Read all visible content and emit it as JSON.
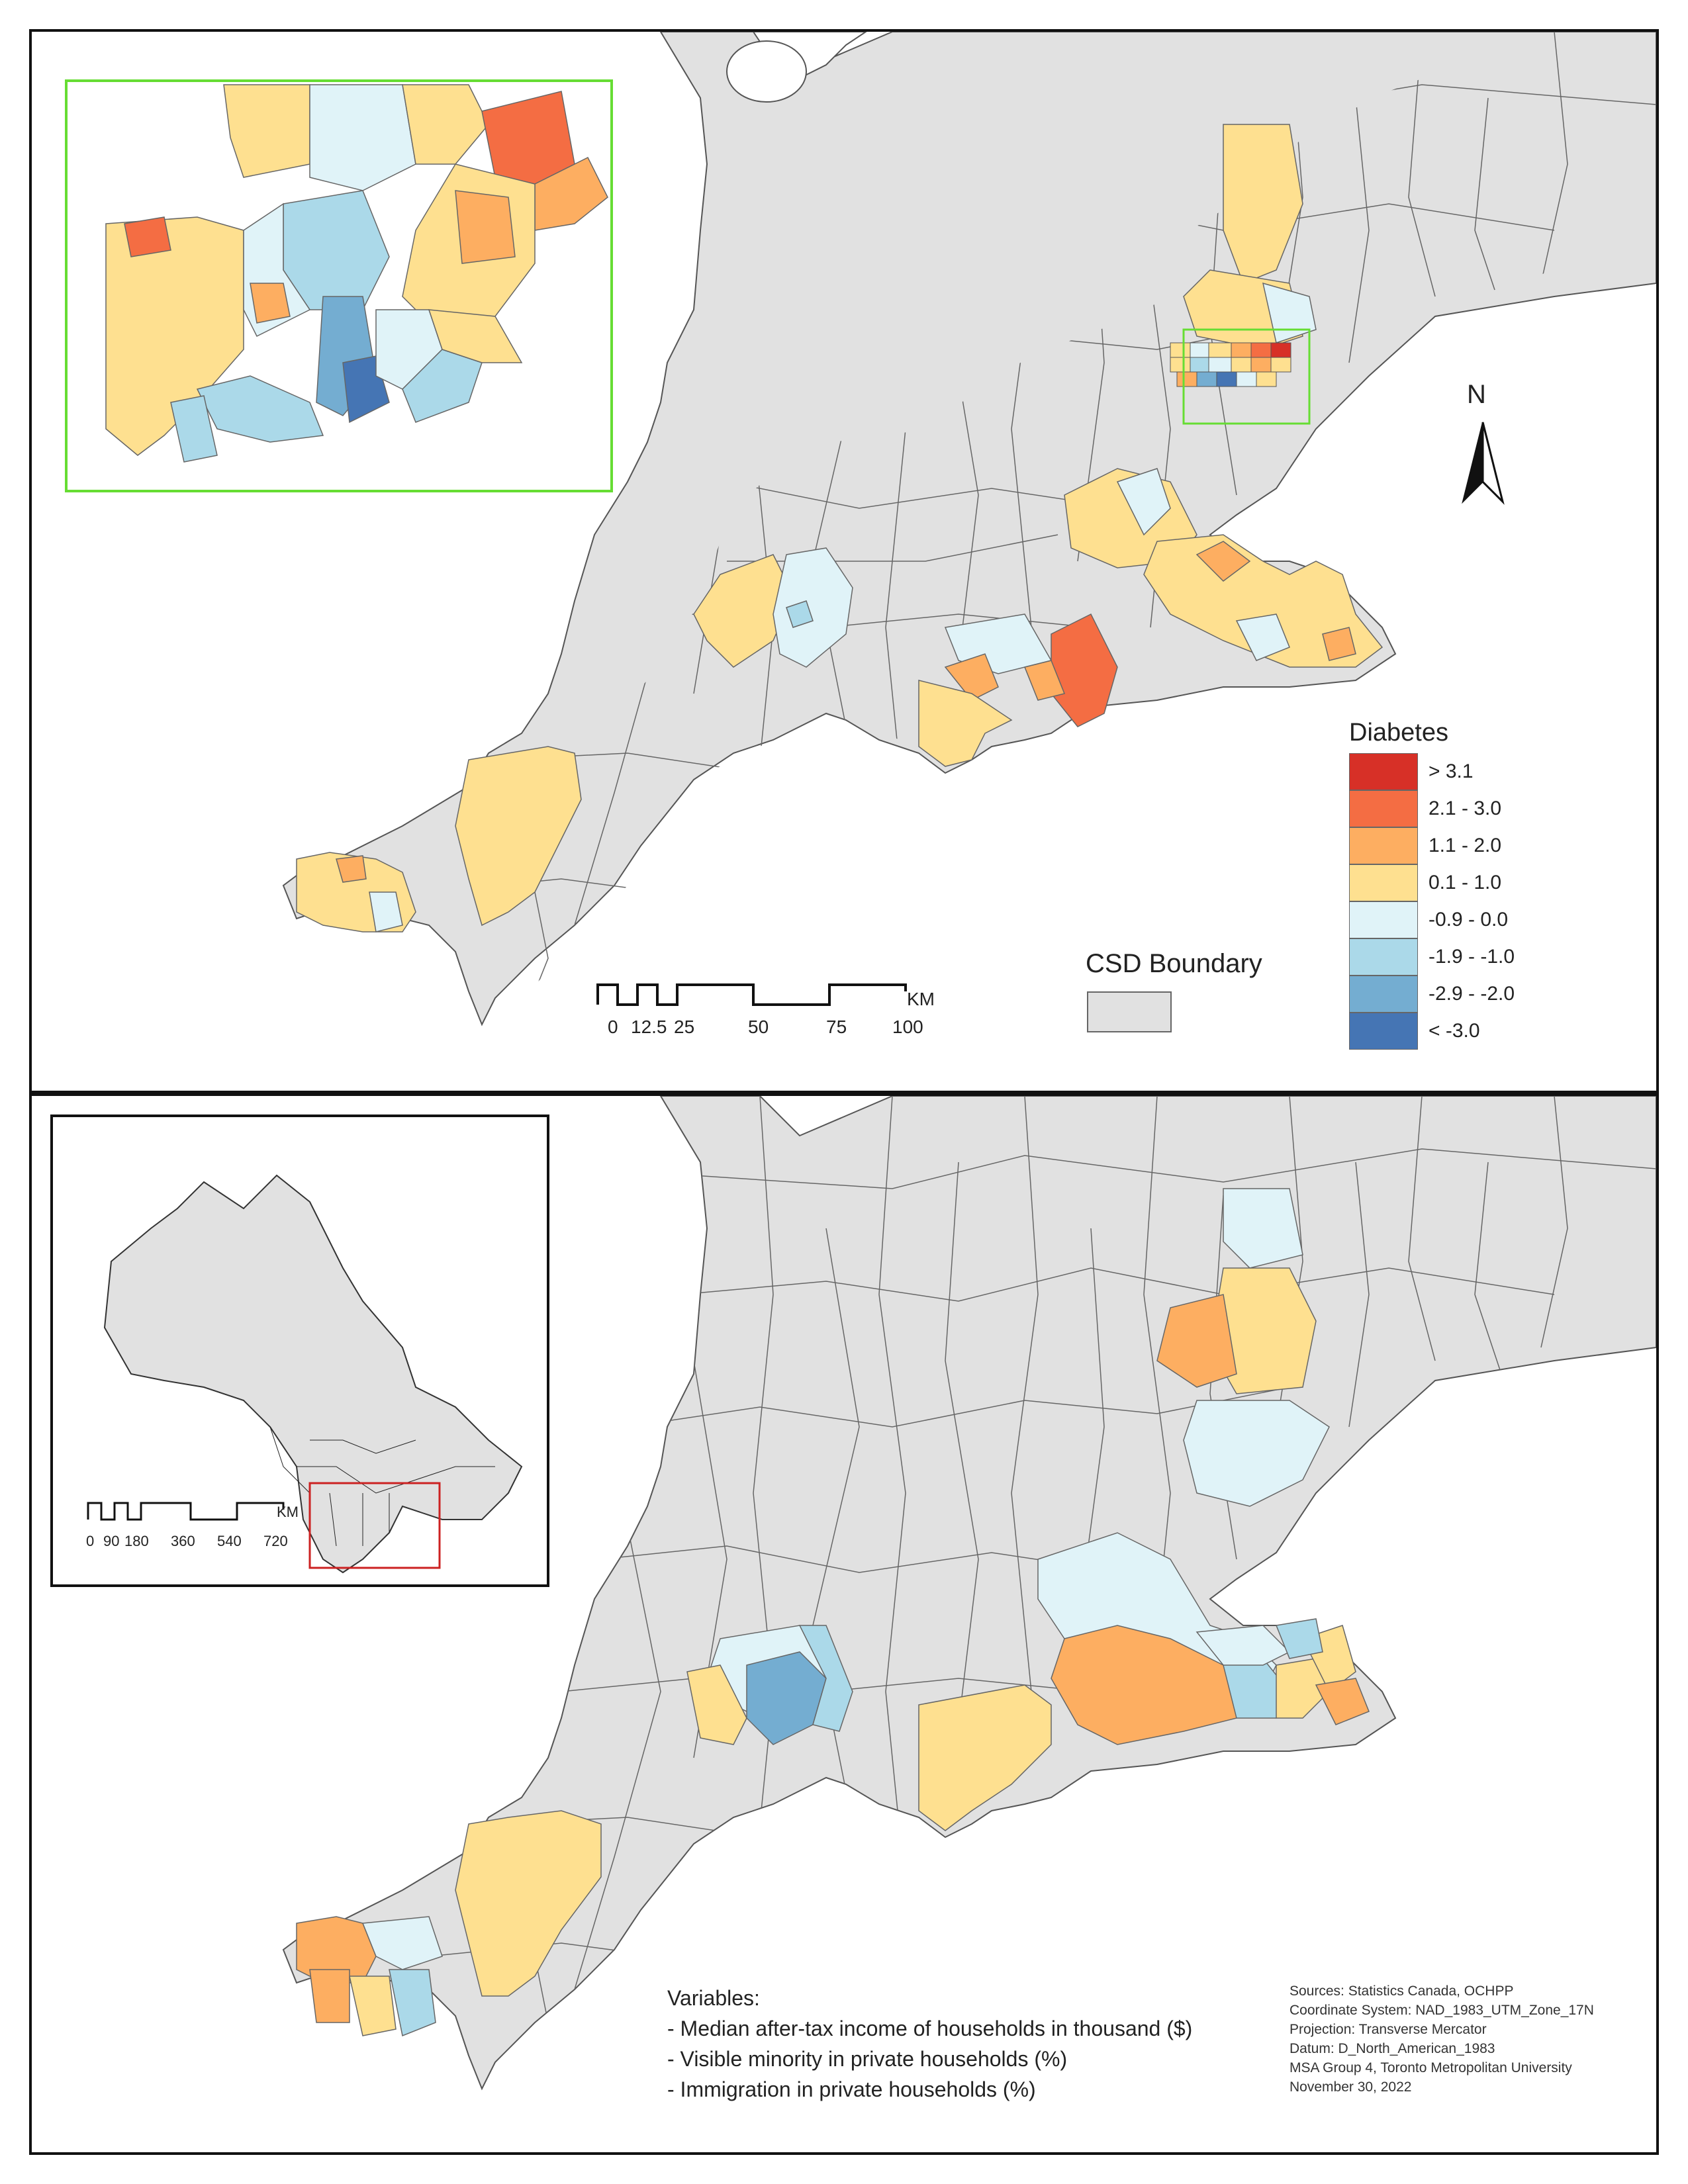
{
  "legend": {
    "title": "Diabetes",
    "classes": [
      {
        "label": "> 3.1",
        "color": "#d73027"
      },
      {
        "label": "2.1 - 3.0",
        "color": "#f46d43"
      },
      {
        "label": "1.1 - 2.0",
        "color": "#fdae61"
      },
      {
        "label": "0.1 - 1.0",
        "color": "#fee090"
      },
      {
        "label": "-0.9 - 0.0",
        "color": "#e0f3f8"
      },
      {
        "label": "-1.9 - -1.0",
        "color": "#abd9e9"
      },
      {
        "label": "-2.9 - -2.0",
        "color": "#74add1"
      },
      {
        "label": "< -3.0",
        "color": "#4575b4"
      }
    ]
  },
  "csd_boundary": {
    "label": "CSD Boundary",
    "color": "#e1e1e1"
  },
  "north_arrow": {
    "label": "N",
    "icon": "north-arrow-icon"
  },
  "scale_bar_main": {
    "ticks": [
      "0",
      "12.5",
      "25",
      "50",
      "75",
      "100"
    ],
    "unit": "KM"
  },
  "scale_bar_inset": {
    "ticks": [
      "0",
      "90",
      "180",
      "360",
      "540",
      "720"
    ],
    "unit": "KM"
  },
  "inset_frames": {
    "toronto": "#66dd33",
    "ontario_extent": "#cc2222"
  },
  "variables": {
    "heading": "Variables:",
    "items": [
      "- Median after-tax income of households in thousand ($)",
      "- Visible minority in private households (%)",
      "- Immigration in private households (%)"
    ]
  },
  "sources": {
    "lines": [
      "Sources: Statistics Canada, OCHPP",
      "Coordinate System: NAD_1983_UTM_Zone_17N",
      "Projection: Transverse Mercator",
      "Datum: D_North_American_1983",
      "MSA Group 4, Toronto Metropolitan University",
      "November 30, 2022"
    ]
  }
}
